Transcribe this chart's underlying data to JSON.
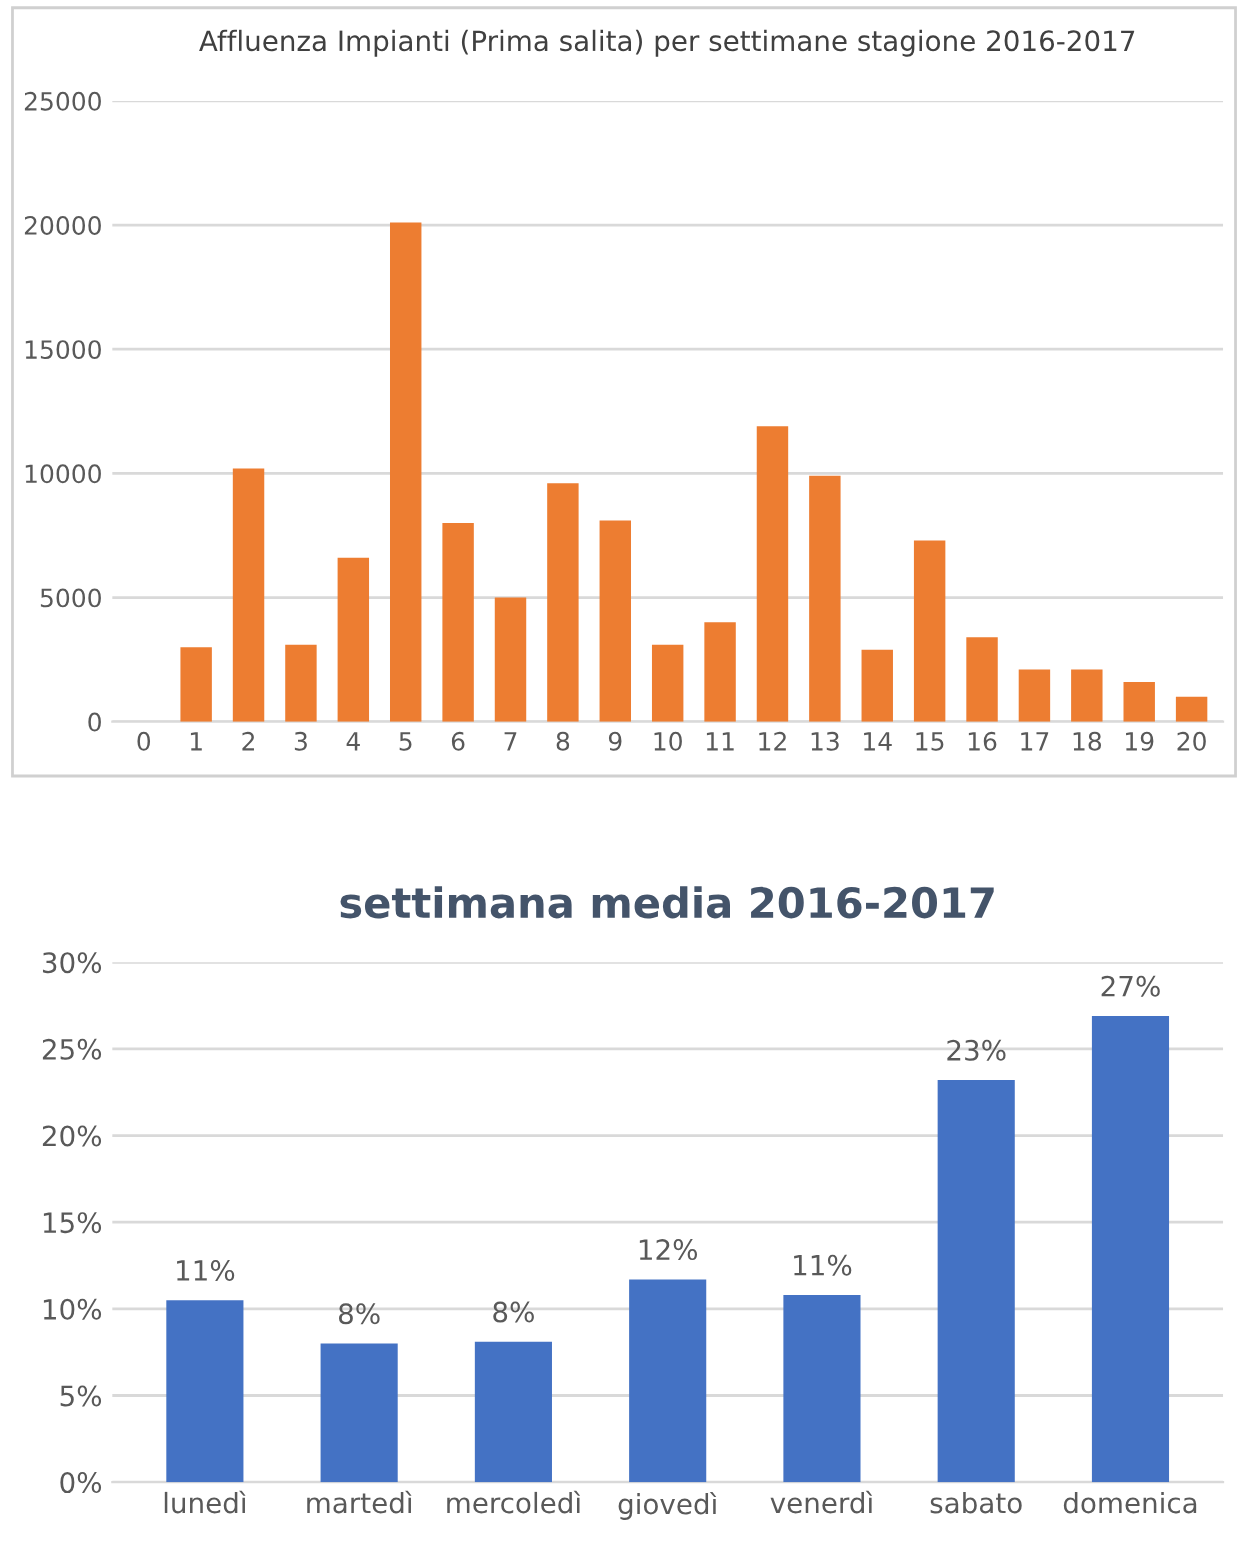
{
  "chart_data": [
    {
      "type": "bar",
      "title": "Affluenza Impianti (Prima salita) per settimane stagione 2016-2017",
      "categories": [
        "0",
        "1",
        "2",
        "3",
        "4",
        "5",
        "6",
        "7",
        "8",
        "9",
        "10",
        "11",
        "12",
        "13",
        "14",
        "15",
        "16",
        "17",
        "18",
        "19",
        "20"
      ],
      "values": [
        null,
        3000,
        10200,
        3100,
        6600,
        20100,
        8000,
        5000,
        9600,
        8100,
        3100,
        4000,
        11900,
        9900,
        2900,
        7300,
        3400,
        2100,
        2100,
        1600,
        1000
      ],
      "color": "#ed7d31",
      "ylim": [
        0,
        25000
      ],
      "yticks": [
        0,
        5000,
        10000,
        15000,
        20000,
        25000
      ],
      "grid": "y"
    },
    {
      "type": "bar",
      "title": "settimana media 2016-2017",
      "categories": [
        "lunedì",
        "martedì",
        "mercoledì",
        "giovedì",
        "venerdì",
        "sabato",
        "domenica"
      ],
      "values": [
        10.5,
        8.0,
        8.1,
        11.7,
        10.8,
        23.2,
        26.9
      ],
      "value_labels": [
        "11%",
        "8%",
        "8%",
        "12%",
        "11%",
        "23%",
        "27%"
      ],
      "color": "#4472c4",
      "ylim": [
        0,
        30
      ],
      "yticks": [
        {
          "value": 0,
          "label": "0%"
        },
        {
          "value": 5,
          "label": "5%"
        },
        {
          "value": 10,
          "label": "10%"
        },
        {
          "value": 15,
          "label": "15%"
        },
        {
          "value": 20,
          "label": "20%"
        },
        {
          "value": 25,
          "label": "25%"
        },
        {
          "value": 30,
          "label": "30%"
        }
      ],
      "grid": "y"
    }
  ]
}
